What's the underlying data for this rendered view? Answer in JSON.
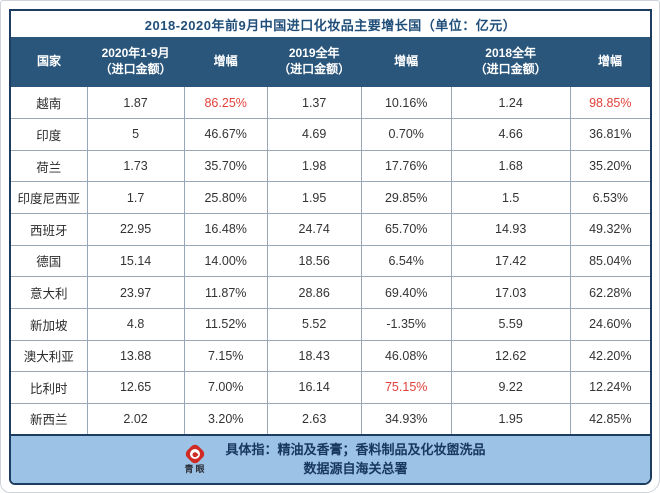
{
  "chart_data": {
    "type": "table",
    "title": "2018-2020年前9月中国进口化妆品主要增长国（单位：亿元）",
    "columns": [
      {
        "label": "国家",
        "sub": ""
      },
      {
        "label": "2020年1-9月",
        "sub": "（进口金额）"
      },
      {
        "label": "增幅",
        "sub": ""
      },
      {
        "label": "2019全年",
        "sub": "（进口金额）"
      },
      {
        "label": "增幅",
        "sub": ""
      },
      {
        "label": "2018全年",
        "sub": "（进口金额）"
      },
      {
        "label": "增幅",
        "sub": ""
      }
    ],
    "rows": [
      [
        "越南",
        "1.87",
        "86.25%",
        "1.37",
        "10.16%",
        "1.24",
        "98.85%"
      ],
      [
        "印度",
        "5",
        "46.67%",
        "4.69",
        "0.70%",
        "4.66",
        "36.81%"
      ],
      [
        "荷兰",
        "1.73",
        "35.70%",
        "1.98",
        "17.76%",
        "1.68",
        "35.20%"
      ],
      [
        "印度尼西亚",
        "1.7",
        "25.80%",
        "1.95",
        "29.85%",
        "1.5",
        "6.53%"
      ],
      [
        "西班牙",
        "22.95",
        "16.48%",
        "24.74",
        "65.70%",
        "14.93",
        "49.32%"
      ],
      [
        "德国",
        "15.14",
        "14.00%",
        "18.56",
        "6.54%",
        "17.42",
        "85.04%"
      ],
      [
        "意大利",
        "23.97",
        "11.87%",
        "28.86",
        "69.40%",
        "17.03",
        "62.28%"
      ],
      [
        "新加坡",
        "4.8",
        "11.52%",
        "5.52",
        "-1.35%",
        "5.59",
        "24.60%"
      ],
      [
        "澳大利亚",
        "13.88",
        "7.15%",
        "18.43",
        "46.08%",
        "12.62",
        "42.20%"
      ],
      [
        "比利时",
        "12.65",
        "7.00%",
        "16.14",
        "75.15%",
        "9.22",
        "12.24%"
      ],
      [
        "新西兰",
        "2.02",
        "3.20%",
        "2.63",
        "34.93%",
        "1.95",
        "42.85%"
      ]
    ],
    "red_cells": [
      [
        0,
        2
      ],
      [
        0,
        6
      ],
      [
        9,
        4
      ]
    ],
    "legend_position": "none",
    "grid": true
  },
  "footer": {
    "line1": "具体指：精油及香膏；香料制品及化妆盥洗品",
    "line2": "数据源自海关总署",
    "logo_text": "青眼"
  },
  "colors": {
    "header_bg": "#2a567c",
    "frame_border": "#1c3d60",
    "title_text": "#1f4e79",
    "grid_line": "#98a7b6",
    "accent_red": "#e2403a",
    "footer_bg": "#9cc2e5",
    "logo_red": "#cf2b24",
    "body_text": "#333333"
  }
}
